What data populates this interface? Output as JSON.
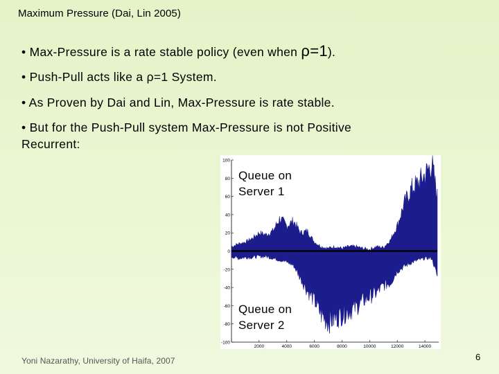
{
  "slide": {
    "title": "Maximum Pressure (Dai, Lin 2005)",
    "bullets": [
      {
        "prefix": "• Max-Pressure is a rate stable policy (even when ",
        "symbol": "ρ=1",
        "suffix": ")."
      },
      {
        "text": "• Push-Pull acts like a ρ=1 System."
      },
      {
        "text": "• As Proven by Dai and Lin, Max-Pressure is rate stable."
      },
      {
        "line1": "• But for the Push-Pull system Max-Pressure  is not Positive",
        "line2": "Recurrent:"
      }
    ],
    "footer": "Yoni Nazarathy, University of Haifa, 2007",
    "page_number": "6"
  },
  "chart_data": {
    "type": "area",
    "annotations": [
      "Queue on\nServer 1",
      "Queue on\nServer 2"
    ],
    "annotation_lines": [
      [
        "Queue on",
        "Server 1"
      ],
      [
        "Queue on",
        "Server 2"
      ]
    ],
    "xlim": [
      0,
      15000
    ],
    "ylim": [
      -100,
      100
    ],
    "xticks": [
      2000,
      4000,
      6000,
      8000,
      10000,
      12000,
      14000
    ],
    "yticks": [
      -100,
      -80,
      -60,
      -40,
      -20,
      0,
      20,
      40,
      60,
      80,
      100
    ],
    "series": [
      {
        "x": [
          0,
          500,
          1000,
          1500,
          2000,
          2500,
          3000,
          3500,
          4000,
          4500,
          5000,
          5500,
          6000,
          6500,
          7000,
          7500,
          8000,
          8500,
          9000,
          9500,
          10000,
          10500,
          11000,
          11500,
          12000,
          12500,
          13000,
          13500,
          14000,
          14500,
          14900
        ],
        "values": [
          5,
          8,
          10,
          14,
          20,
          18,
          22,
          36,
          28,
          33,
          20,
          22,
          10,
          5,
          3,
          5,
          3,
          5,
          5,
          3,
          2,
          5,
          4,
          12,
          28,
          52,
          68,
          75,
          84,
          96,
          60
        ]
      },
      {
        "x": [
          0,
          500,
          1000,
          1500,
          2000,
          2500,
          3000,
          3500,
          4000,
          4500,
          5000,
          5500,
          6000,
          6500,
          7000,
          7500,
          8000,
          8500,
          9000,
          9500,
          10000,
          10500,
          11000,
          11500,
          12000,
          12500,
          13000,
          13500,
          14000,
          14500,
          14900
        ],
        "values": [
          -6,
          -8,
          -7,
          -7,
          -6,
          -6,
          -8,
          -10,
          -12,
          -16,
          -30,
          -44,
          -54,
          -70,
          -78,
          -74,
          -70,
          -66,
          -62,
          -55,
          -50,
          -46,
          -38,
          -35,
          -22,
          -17,
          -13,
          -10,
          -8,
          -8,
          -28
        ]
      }
    ],
    "colors": {
      "fill": "#1c1c8c",
      "zero_line": "#000000"
    }
  }
}
